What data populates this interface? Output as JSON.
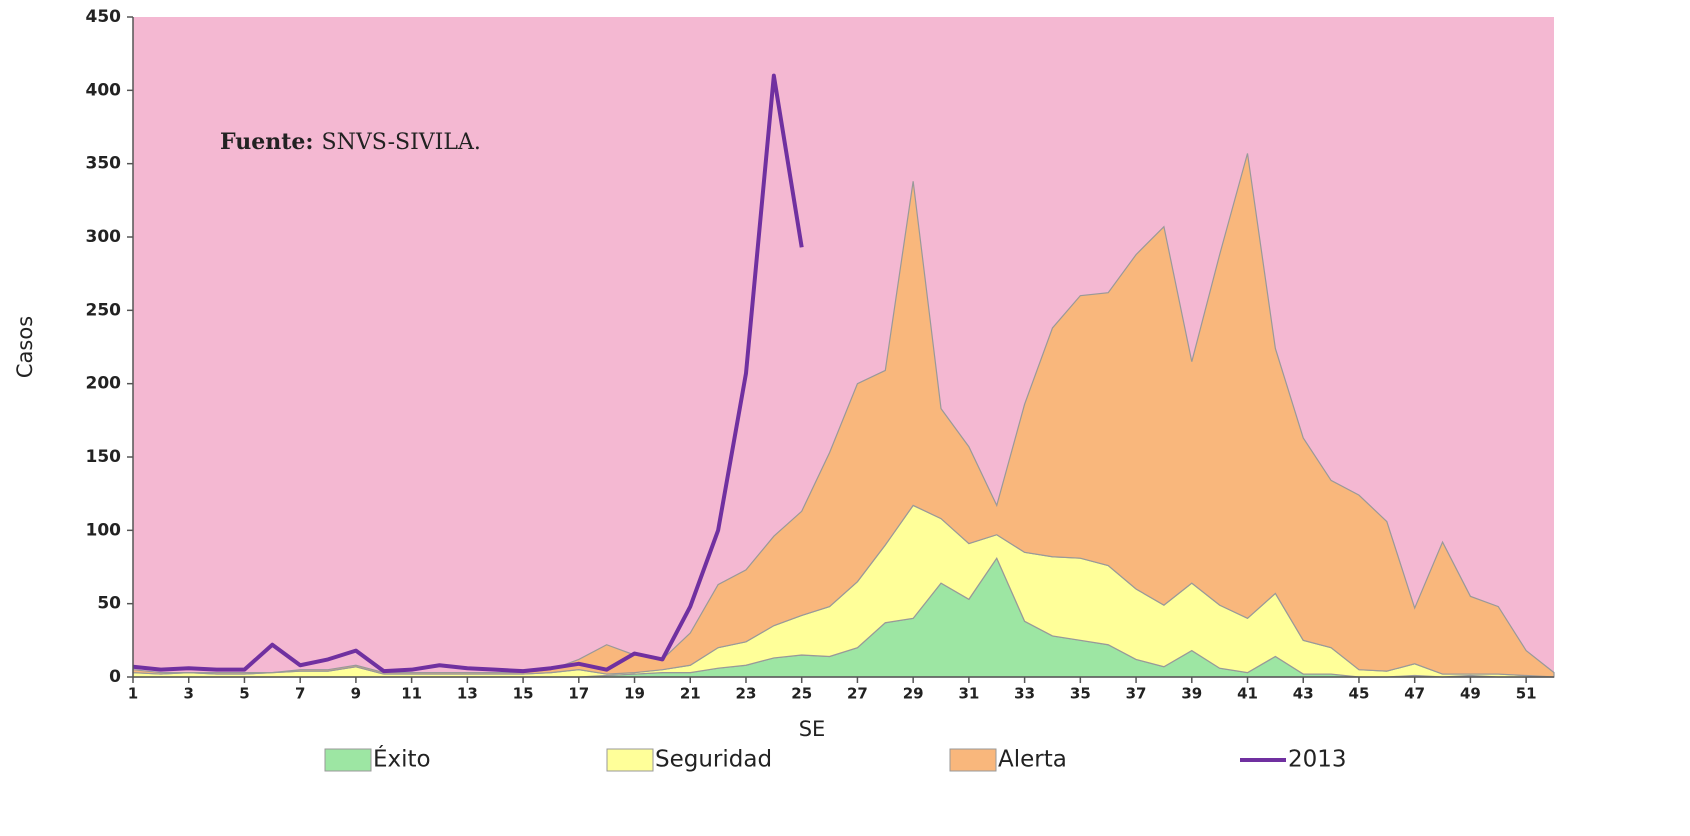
{
  "chart_data": {
    "type": "stacked_area",
    "x_label": "SE",
    "y_label": "Casos",
    "annotation": {
      "label": "Fuente:",
      "text": "SNVS-SIVILA."
    },
    "plot_color": "#f4b8d2",
    "x": [
      1,
      2,
      3,
      4,
      5,
      6,
      7,
      8,
      9,
      10,
      11,
      12,
      13,
      14,
      15,
      16,
      17,
      18,
      19,
      20,
      21,
      22,
      23,
      24,
      25,
      26,
      27,
      28,
      29,
      30,
      31,
      32,
      33,
      34,
      35,
      36,
      37,
      38,
      39,
      40,
      41,
      42,
      43,
      44,
      45,
      46,
      47,
      48,
      49,
      50,
      51,
      52
    ],
    "xlim": [
      1,
      52
    ],
    "xticks": [
      1,
      3,
      5,
      7,
      9,
      11,
      13,
      15,
      17,
      19,
      21,
      23,
      25,
      27,
      29,
      31,
      33,
      35,
      37,
      39,
      41,
      43,
      45,
      47,
      49,
      51
    ],
    "ylim": [
      0,
      450
    ],
    "yticks": [
      0,
      50,
      100,
      150,
      200,
      250,
      300,
      350,
      400,
      450
    ],
    "series": [
      {
        "name": "Éxito",
        "color": "#9de6a3",
        "values": [
          0,
          0,
          0,
          0,
          0,
          0,
          0,
          0,
          0,
          0,
          0,
          0,
          0,
          0,
          0,
          0,
          0,
          1,
          2,
          3,
          3,
          6,
          8,
          13,
          15,
          14,
          20,
          37,
          40,
          64,
          53,
          81,
          38,
          28,
          25,
          22,
          12,
          7,
          18,
          6,
          3,
          14,
          2,
          2,
          0,
          0,
          1,
          0,
          1,
          0,
          0,
          0
        ]
      },
      {
        "name": "Seguridad",
        "color": "#ffff99",
        "values": [
          3,
          2,
          3,
          2,
          2,
          3,
          4,
          4,
          7,
          2,
          2,
          2,
          2,
          2,
          2,
          3,
          5,
          1,
          1,
          2,
          5,
          14,
          16,
          22,
          27,
          34,
          45,
          53,
          77,
          44,
          38,
          16,
          47,
          54,
          56,
          54,
          48,
          42,
          46,
          43,
          37,
          43,
          23,
          18,
          5,
          4,
          8,
          2,
          1,
          2,
          1,
          0
        ]
      },
      {
        "name": "Alerta",
        "color": "#f9b77c",
        "values": [
          2,
          1,
          0,
          1,
          1,
          0,
          1,
          1,
          1,
          1,
          1,
          1,
          1,
          1,
          1,
          2,
          7,
          20,
          12,
          7,
          22,
          43,
          49,
          61,
          71,
          105,
          135,
          119,
          221,
          75,
          66,
          20,
          101,
          156,
          179,
          186,
          228,
          258,
          151,
          239,
          317,
          167,
          138,
          114,
          119,
          102,
          38,
          90,
          53,
          46,
          17,
          3
        ]
      },
      {
        "name": "2013",
        "color": "#7030a0",
        "kind": "line",
        "values": [
          7,
          5,
          6,
          5,
          5,
          22,
          8,
          12,
          18,
          4,
          5,
          8,
          6,
          5,
          4,
          6,
          9,
          5,
          16,
          12,
          48,
          100,
          207,
          410,
          293,
          null,
          null,
          null,
          null,
          null,
          null,
          null,
          null,
          null,
          null,
          null,
          null,
          null,
          null,
          null,
          null,
          null,
          null,
          null,
          null,
          null,
          null,
          null,
          null,
          null,
          null,
          null
        ]
      }
    ]
  }
}
